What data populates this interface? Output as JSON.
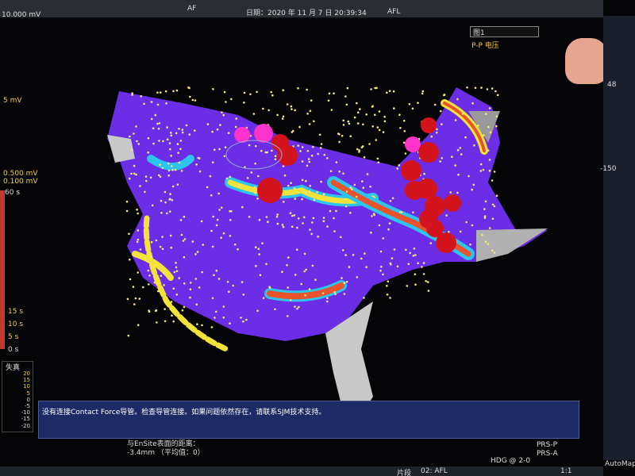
{
  "header": {
    "scale": "10.000 mV",
    "tab": "AF",
    "date": "日期：2020 年 11 月 7 日 20:39:34",
    "map_name": "AFL"
  },
  "map_panel": {
    "map_select": "图1",
    "map_type": "P-P 电压",
    "zoom": "48",
    "angle": "-150"
  },
  "left_scale": {
    "labels": [
      "5 mV",
      "0.500 mV",
      "0.100 mV",
      "60 s",
      "15 s",
      "10 s",
      "5 s",
      "0 s"
    ]
  },
  "distortion": {
    "title": "失真",
    "ticks": [
      "20",
      "15",
      "10",
      "5",
      "0",
      "-5",
      "-10",
      "-15",
      "-20"
    ]
  },
  "message": "没有连接Contact Force导管。检查导管连接。如果问题依然存在，请联系SJM技术支持。",
  "distance": {
    "label": "与EnSite表面的距离：",
    "value": "-3.4mm （平均值：0）"
  },
  "status": {
    "items": [
      "PRS-P",
      "PRS-A",
      "HDG @ 2-0"
    ]
  },
  "footer": {
    "segment_label": "片段",
    "segment": "02: AFL",
    "ratio": "1:1",
    "automap": "AutoMap"
  }
}
